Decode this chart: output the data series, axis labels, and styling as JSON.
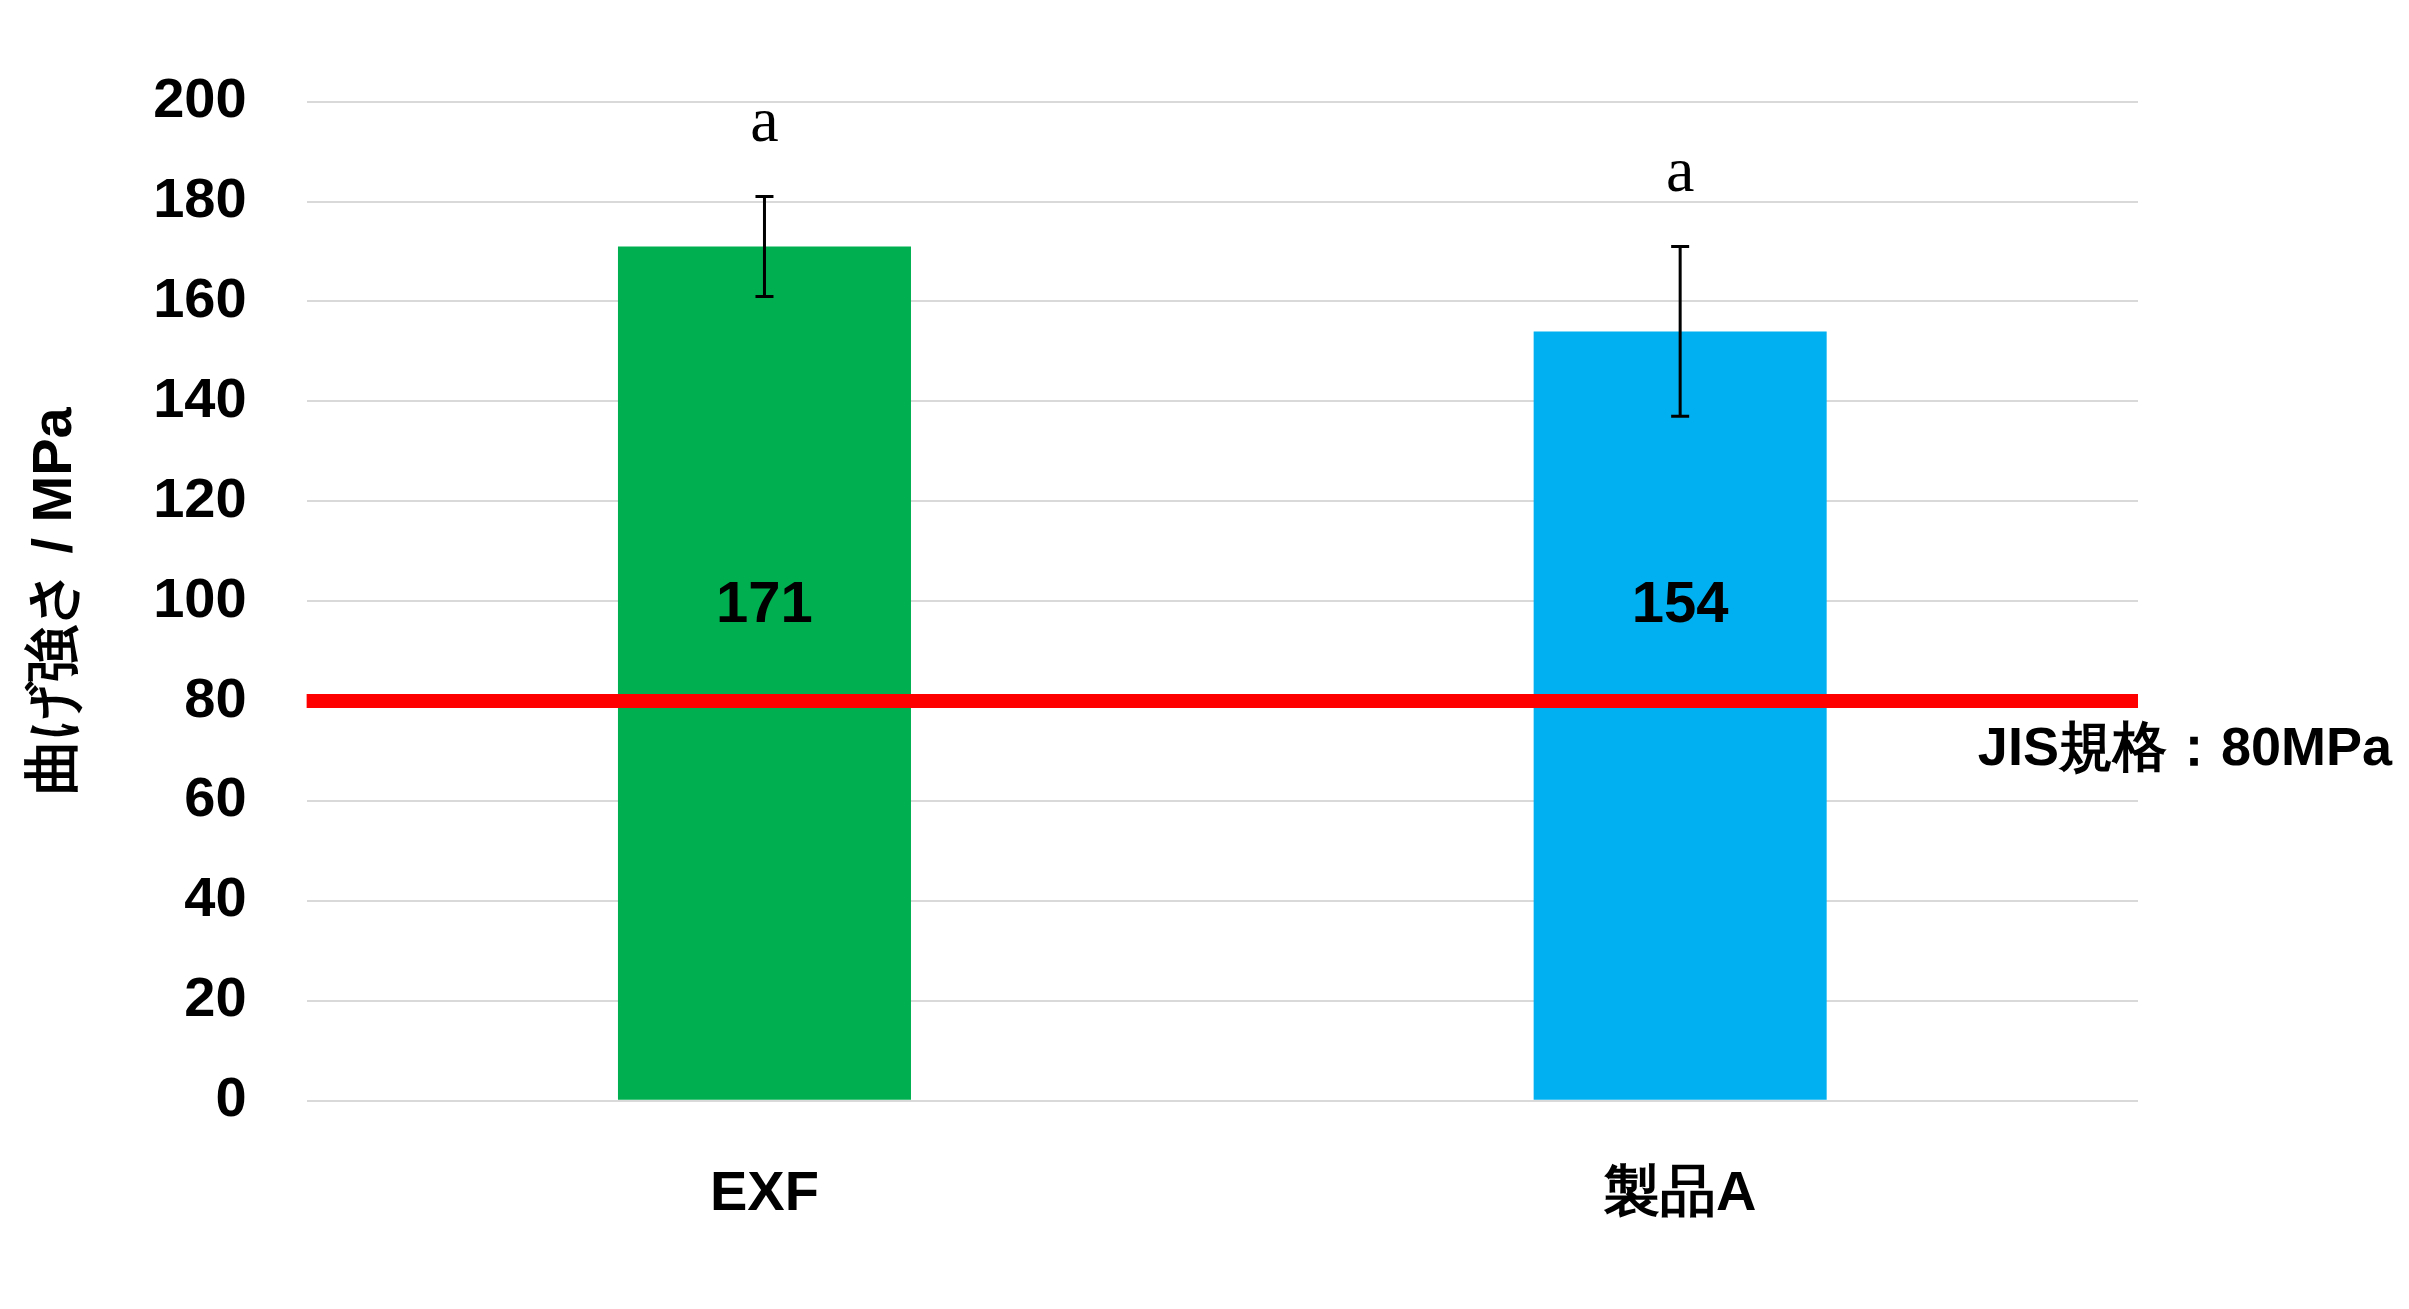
{
  "chart_data": {
    "type": "bar",
    "ylabel": "曲げ強さ / MPa",
    "categories": [
      "EXF",
      "製品A"
    ],
    "values": [
      171,
      154
    ],
    "colors": [
      "#00b050",
      "#00b0f0"
    ],
    "errors": [
      10,
      17
    ],
    "data_labels": true,
    "ylim": [
      0,
      200
    ],
    "yticks": [
      0,
      20,
      40,
      60,
      80,
      100,
      120,
      140,
      160,
      180,
      200
    ],
    "grid": "y",
    "legend": false,
    "ref_lines": [
      {
        "axis": "y",
        "value": 80,
        "label": "JIS規格：80MPa",
        "color": "#ff0000"
      }
    ],
    "annotations": [
      "a",
      "a"
    ]
  }
}
